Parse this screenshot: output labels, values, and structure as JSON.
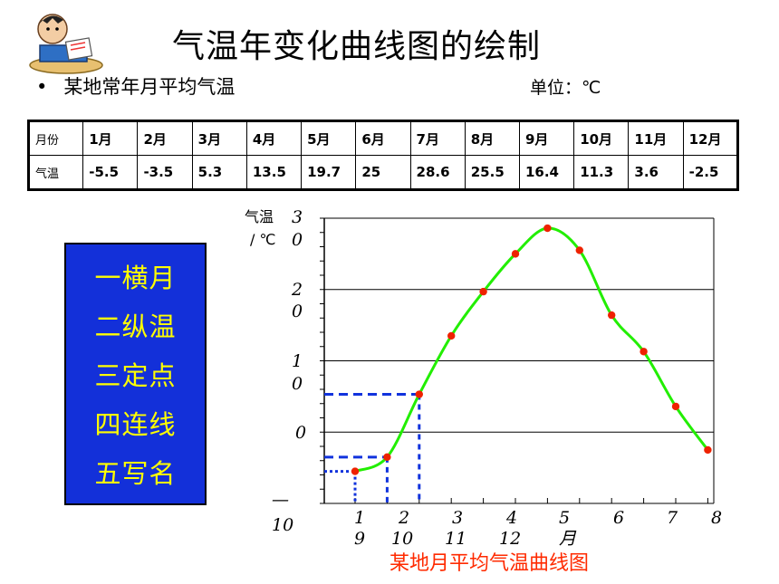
{
  "slide": {
    "title": "气温年变化曲线图的绘制",
    "bullet_text": "某地常年月平均气温",
    "unit_text": "单位：℃"
  },
  "table": {
    "row_labels": [
      "月份",
      "气温"
    ],
    "months": [
      "1月",
      "2月",
      "3月",
      "4月",
      "5月",
      "6月",
      "7月",
      "8月",
      "9月",
      "10月",
      "11月",
      "12月"
    ],
    "temps": [
      "-5.5",
      "-3.5",
      "5.3",
      "13.5",
      "19.7",
      "25",
      "28.6",
      "25.5",
      "16.4",
      "11.3",
      "3.6",
      "-2.5"
    ]
  },
  "steps": [
    "一横月",
    "二纵温",
    "三定点",
    "四连线",
    "五写名"
  ],
  "chart_data": {
    "type": "line",
    "title": "某地月平均气温曲线图",
    "ylabel_line1": "气温",
    "ylabel_line2": "/ ℃",
    "xunit": "月",
    "ylim": [
      -10,
      30
    ],
    "yticks": [
      30,
      20,
      10,
      0,
      -10
    ],
    "ytick_labels": [
      [
        "3",
        "0"
      ],
      [
        "2",
        "0"
      ],
      [
        "1",
        "0"
      ],
      [
        "0"
      ],
      [
        "—",
        "10"
      ]
    ],
    "xtick_labels": [
      [
        "1",
        "9"
      ],
      [
        "2",
        "10"
      ],
      [
        "3",
        "11"
      ],
      [
        "4",
        "12"
      ],
      [
        "5",
        "月"
      ],
      [
        "6"
      ],
      [
        "7"
      ],
      [
        "8"
      ]
    ],
    "x": [
      1,
      2,
      3,
      4,
      5,
      6,
      7,
      8,
      9,
      10,
      11,
      12
    ],
    "values": [
      -5.5,
      -3.5,
      5.3,
      13.5,
      19.7,
      25,
      28.6,
      25.5,
      16.4,
      11.3,
      3.6,
      -2.5
    ],
    "grid": true,
    "colors": {
      "line": "#22ee00",
      "points": "#ee2200",
      "guides": "#1133dd",
      "grid": "#000000"
    }
  }
}
